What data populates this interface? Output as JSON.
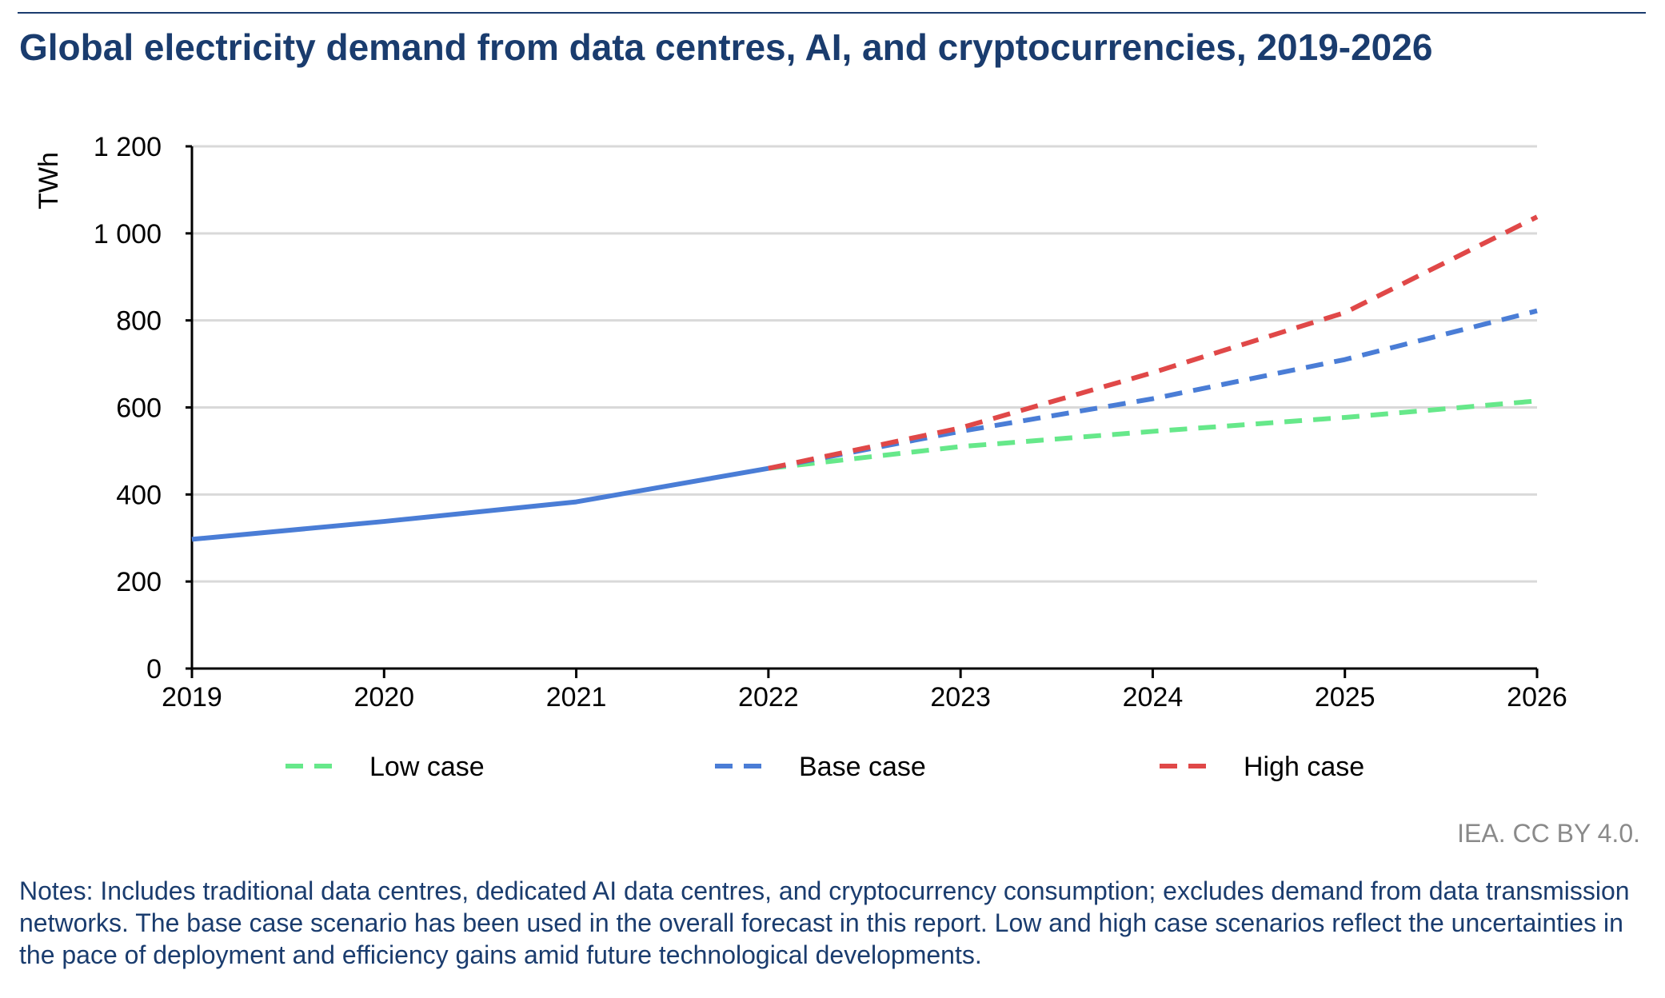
{
  "chart_data": {
    "type": "line",
    "title": "Global electricity demand from data centres, AI, and cryptocurrencies, 2019-2026",
    "ylabel": "TWh",
    "xlabel": "",
    "ylim": [
      0,
      1200
    ],
    "yticks": [
      0,
      200,
      400,
      600,
      800,
      1000,
      1200
    ],
    "ytick_labels": [
      "0",
      "200",
      "400",
      "600",
      "800",
      "1 000",
      "1 200"
    ],
    "xticks": [
      "2019",
      "2020",
      "2021",
      "2022",
      "2023",
      "2024",
      "2025",
      "2026"
    ],
    "grid": true,
    "legend_position": "bottom",
    "historical": {
      "x": [
        2019,
        2020,
        2021,
        2022
      ],
      "values": [
        297,
        338,
        383,
        460
      ],
      "color": "#4a7dd6"
    },
    "series": [
      {
        "name": "Low case",
        "x": [
          2022,
          2023,
          2024,
          2025,
          2026
        ],
        "values": [
          460,
          510,
          545,
          577,
          615
        ],
        "color": "#66e88a"
      },
      {
        "name": "Base case",
        "x": [
          2022,
          2023,
          2024,
          2025,
          2026
        ],
        "values": [
          460,
          545,
          620,
          710,
          822
        ],
        "color": "#4a7dd6"
      },
      {
        "name": "High case",
        "x": [
          2022,
          2023,
          2024,
          2025,
          2026
        ],
        "values": [
          460,
          553,
          680,
          818,
          1038
        ],
        "color": "#e04848"
      }
    ]
  },
  "credit": "IEA. CC BY 4.0.",
  "notes": "Notes: Includes traditional data centres, dedicated AI data centres, and cryptocurrency consumption; excludes demand from data transmission networks. The base case scenario has been used in the overall forecast in this report. Low and high case scenarios reflect the uncertainties in the pace of deployment and efficiency gains amid future technological developments."
}
